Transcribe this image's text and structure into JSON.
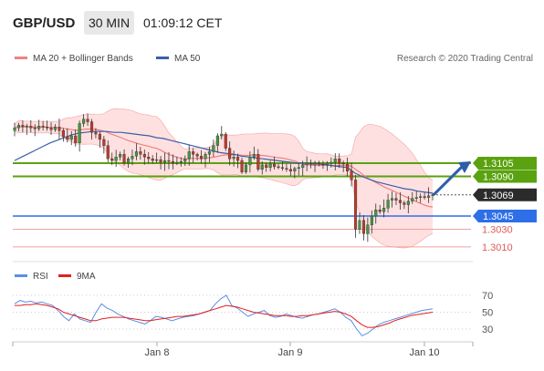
{
  "header": {
    "pair": "GBP/USD",
    "timeframe": "30 MIN",
    "time": "01:09:12 CET"
  },
  "legend": {
    "ma20": "MA 20 + Bollinger Bands",
    "ma50": "MA 50",
    "source": "Research © 2020 Trading Central",
    "rsi": "RSI",
    "ma9": "9MA"
  },
  "colors": {
    "green": "#5aa20f",
    "blue": "#2e6fe8",
    "red": "#e05a5a",
    "dark": "#2b2b2b",
    "candle_up": "#3f9a3f",
    "candle_down": "#c0392b",
    "band": "#ffd6d6",
    "ma50": "#3a5fa8",
    "rsi": "#5b8ee6",
    "ma9": "#e02020",
    "arrow": "#2e5ea8"
  },
  "chart_data": [
    {
      "type": "line",
      "title": "GBP/USD",
      "xlabel": "",
      "ylabel": "",
      "x_ticks": [
        "Jan 8",
        "Jan 9",
        "Jan 10"
      ],
      "levels": [
        {
          "label": "1.3105",
          "value": 1.3105,
          "style": "green-box"
        },
        {
          "label": "1.3090",
          "value": 1.309,
          "style": "green-box"
        },
        {
          "label": "1.3069",
          "value": 1.3069,
          "style": "dark-box"
        },
        {
          "label": "1.3045",
          "value": 1.3045,
          "style": "blue-box"
        },
        {
          "label": "1.3030",
          "value": 1.303,
          "style": "red-text"
        },
        {
          "label": "1.3010",
          "value": 1.301,
          "style": "red-text"
        }
      ],
      "series": [
        {
          "name": "MA 20 + Bollinger Bands"
        },
        {
          "name": "MA 50"
        }
      ],
      "close": [
        1.3145,
        1.3148,
        1.3146,
        1.3147,
        1.3145,
        1.3144,
        1.3147,
        1.3146,
        1.3145,
        1.3143,
        1.3146,
        1.3142,
        1.3135,
        1.3132,
        1.3136,
        1.3128,
        1.315,
        1.3155,
        1.3152,
        1.314,
        1.3138,
        1.3132,
        1.3125,
        1.311,
        1.3108,
        1.3112,
        1.3115,
        1.3105,
        1.311,
        1.3113,
        1.3118,
        1.3115,
        1.3112,
        1.311,
        1.3108,
        1.3109,
        1.3106,
        1.3108,
        1.3107,
        1.3105,
        1.3106,
        1.3107,
        1.311,
        1.3118,
        1.3115,
        1.3113,
        1.311,
        1.3115,
        1.3118,
        1.3125,
        1.3136,
        1.3138,
        1.3122,
        1.311,
        1.3112,
        1.3108,
        1.3095,
        1.3103,
        1.3112,
        1.3115,
        1.3098,
        1.3103,
        1.31,
        1.3104,
        1.3101,
        1.31,
        1.3099,
        1.3098,
        1.3096,
        1.3099,
        1.31,
        1.3103,
        1.3105,
        1.3104,
        1.3105,
        1.3104,
        1.3103,
        1.3105,
        1.3106,
        1.311,
        1.3105,
        1.3104,
        1.3096,
        1.3086,
        1.303,
        1.304,
        1.3025,
        1.3035,
        1.3045,
        1.3052,
        1.305,
        1.3054,
        1.3063,
        1.3065,
        1.3063,
        1.306,
        1.3058,
        1.3062,
        1.3065,
        1.3066,
        1.3067,
        1.3066,
        1.3068,
        1.3069
      ],
      "ma50": [
        1.3108,
        1.3112,
        1.3116,
        1.312,
        1.3124,
        1.3128,
        1.3131,
        1.3134,
        1.3137,
        1.3139,
        1.314,
        1.3141,
        1.3141,
        1.3141,
        1.314,
        1.314,
        1.3139,
        1.3138,
        1.3137,
        1.3136,
        1.3134,
        1.3133,
        1.3131,
        1.3129,
        1.3127,
        1.3125,
        1.3123,
        1.3121,
        1.3119,
        1.3117,
        1.3116,
        1.3115,
        1.3113,
        1.3112,
        1.3111,
        1.311,
        1.3109,
        1.3108,
        1.3107,
        1.3106,
        1.3105,
        1.3105,
        1.3104,
        1.3104,
        1.3103,
        1.3102,
        1.3101,
        1.31,
        1.3094,
        1.309,
        1.3087,
        1.3084,
        1.3082,
        1.308,
        1.3078,
        1.3076,
        1.3075,
        1.3073,
        1.3072,
        1.3071
      ],
      "rsi": [
        60,
        64,
        62,
        63,
        61,
        62,
        60,
        58,
        52,
        45,
        40,
        48,
        42,
        40,
        38,
        50,
        60,
        55,
        52,
        48,
        45,
        42,
        40,
        38,
        36,
        40,
        45,
        44,
        42,
        40,
        42,
        44,
        45,
        46,
        48,
        50,
        52,
        60,
        66,
        70,
        58,
        55,
        50,
        45,
        48,
        50,
        52,
        46,
        44,
        45,
        48,
        46,
        44,
        43,
        45,
        47,
        48,
        50,
        52,
        54,
        50,
        44,
        40,
        30,
        22,
        25,
        30,
        35,
        38,
        40,
        42,
        44,
        46,
        48,
        50,
        52,
        53,
        54
      ],
      "ma9": [
        58,
        58,
        59,
        59,
        60,
        59,
        58,
        56,
        54,
        50,
        48,
        46,
        44,
        42,
        40,
        40,
        42,
        43,
        44,
        44,
        44,
        43,
        42,
        41,
        40,
        40,
        41,
        42,
        43,
        44,
        45,
        45,
        46,
        47,
        48,
        50,
        52,
        54,
        56,
        58,
        57,
        56,
        54,
        52,
        50,
        49,
        48,
        47,
        46,
        46,
        46,
        45,
        45,
        46,
        46,
        47,
        48,
        49,
        50,
        51,
        50,
        48,
        45,
        40,
        35,
        32,
        32,
        33,
        35,
        37,
        40,
        42,
        44,
        46,
        47,
        48,
        49,
        50
      ],
      "rsi_levels": [
        70,
        50,
        30
      ]
    }
  ]
}
